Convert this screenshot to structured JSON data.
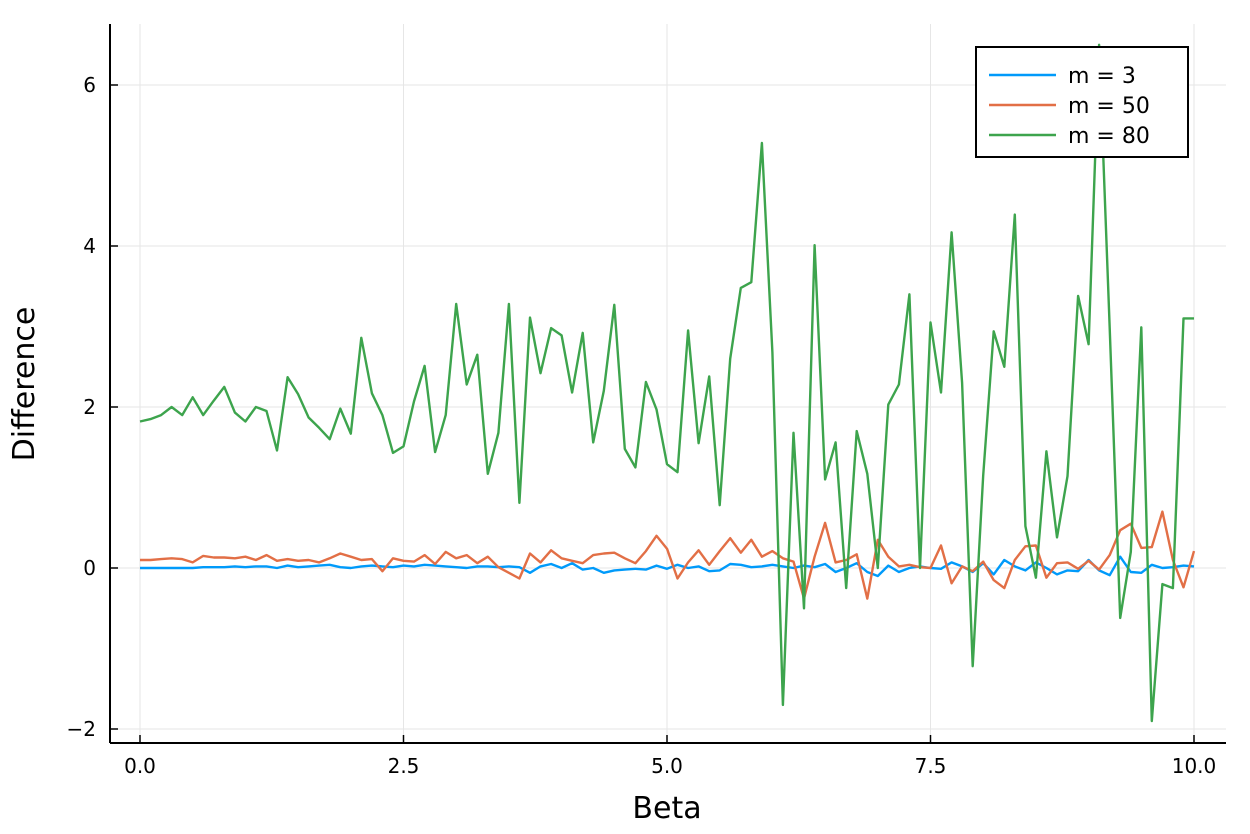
{
  "chart_data": {
    "type": "line",
    "xlabel": "Beta",
    "ylabel": "Difference",
    "xlim": [
      0,
      10
    ],
    "ylim": [
      -2.1,
      6.7
    ],
    "xticks": [
      0.0,
      2.5,
      5.0,
      7.5,
      10.0
    ],
    "xtick_labels": [
      "0.0",
      "2.5",
      "5.0",
      "7.5",
      "10.0"
    ],
    "yticks": [
      -2,
      0,
      2,
      4,
      6
    ],
    "ytick_labels": [
      "−2",
      "0",
      "2",
      "4",
      "6"
    ],
    "grid": true,
    "legend_position": "top-right",
    "series": [
      {
        "name": "m = 3",
        "color": "#009AFA",
        "x": [
          0.0,
          0.1,
          0.2,
          0.3,
          0.4,
          0.5,
          0.6,
          0.7,
          0.8,
          0.9,
          1.0,
          1.1,
          1.2,
          1.3,
          1.4,
          1.5,
          1.6,
          1.7,
          1.8,
          1.9,
          2.0,
          2.1,
          2.2,
          2.3,
          2.4,
          2.5,
          2.6,
          2.7,
          2.8,
          2.9,
          3.0,
          3.1,
          3.2,
          3.3,
          3.4,
          3.5,
          3.6,
          3.7,
          3.8,
          3.9,
          4.0,
          4.1,
          4.2,
          4.3,
          4.4,
          4.5,
          4.6,
          4.7,
          4.8,
          4.9,
          5.0,
          5.1,
          5.2,
          5.3,
          5.4,
          5.5,
          5.6,
          5.7,
          5.8,
          5.9,
          6.0,
          6.1,
          6.2,
          6.3,
          6.4,
          6.5,
          6.6,
          6.7,
          6.8,
          6.9,
          7.0,
          7.1,
          7.2,
          7.3,
          7.4,
          7.5,
          7.6,
          7.7,
          7.8,
          7.9,
          8.0,
          8.1,
          8.2,
          8.3,
          8.4,
          8.5,
          8.6,
          8.7,
          8.8,
          8.9,
          9.0,
          9.1,
          9.2,
          9.3,
          9.4,
          9.5,
          9.6,
          9.7,
          9.8,
          9.9,
          10.0
        ],
        "values": [
          0.0,
          0.0,
          0.0,
          0.0,
          0.0,
          0.0,
          0.01,
          0.01,
          0.01,
          0.02,
          0.01,
          0.02,
          0.02,
          0.0,
          0.03,
          0.01,
          0.02,
          0.03,
          0.04,
          0.01,
          0.0,
          0.02,
          0.03,
          0.02,
          0.01,
          0.03,
          0.02,
          0.04,
          0.03,
          0.02,
          0.01,
          0.0,
          0.02,
          0.02,
          0.01,
          0.02,
          0.01,
          -0.06,
          0.02,
          0.05,
          0.0,
          0.06,
          -0.02,
          0.0,
          -0.06,
          -0.03,
          -0.02,
          -0.01,
          -0.02,
          0.03,
          -0.01,
          0.04,
          0.0,
          0.02,
          -0.04,
          -0.03,
          0.05,
          0.04,
          0.01,
          0.02,
          0.04,
          0.02,
          0.0,
          0.03,
          0.01,
          0.05,
          -0.05,
          0.0,
          0.06,
          -0.05,
          -0.1,
          0.03,
          -0.05,
          0.0,
          0.02,
          0.0,
          -0.01,
          0.07,
          0.02,
          -0.05,
          0.06,
          -0.08,
          0.1,
          0.02,
          -0.03,
          0.07,
          0.0,
          -0.08,
          -0.03,
          -0.04,
          0.1,
          -0.03,
          -0.09,
          0.14,
          -0.05,
          -0.06,
          0.04,
          0.0,
          0.01,
          0.03,
          0.02
        ]
      },
      {
        "name": "m = 50",
        "color": "#E26F46",
        "x": [
          0.0,
          0.1,
          0.2,
          0.3,
          0.4,
          0.5,
          0.6,
          0.7,
          0.8,
          0.9,
          1.0,
          1.1,
          1.2,
          1.3,
          1.4,
          1.5,
          1.6,
          1.7,
          1.8,
          1.9,
          2.0,
          2.1,
          2.2,
          2.3,
          2.4,
          2.5,
          2.6,
          2.7,
          2.8,
          2.9,
          3.0,
          3.1,
          3.2,
          3.3,
          3.4,
          3.5,
          3.6,
          3.7,
          3.8,
          3.9,
          4.0,
          4.1,
          4.2,
          4.3,
          4.4,
          4.5,
          4.6,
          4.7,
          4.8,
          4.9,
          5.0,
          5.1,
          5.2,
          5.3,
          5.4,
          5.5,
          5.6,
          5.7,
          5.8,
          5.9,
          6.0,
          6.1,
          6.2,
          6.3,
          6.4,
          6.5,
          6.6,
          6.7,
          6.8,
          6.9,
          7.0,
          7.1,
          7.2,
          7.3,
          7.4,
          7.5,
          7.6,
          7.7,
          7.8,
          7.9,
          8.0,
          8.1,
          8.2,
          8.3,
          8.4,
          8.5,
          8.6,
          8.7,
          8.8,
          8.9,
          9.0,
          9.1,
          9.2,
          9.3,
          9.4,
          9.5,
          9.6,
          9.7,
          9.8,
          9.9,
          10.0
        ],
        "values": [
          0.1,
          0.1,
          0.11,
          0.12,
          0.11,
          0.07,
          0.15,
          0.13,
          0.13,
          0.12,
          0.14,
          0.1,
          0.16,
          0.09,
          0.11,
          0.09,
          0.1,
          0.07,
          0.12,
          0.18,
          0.14,
          0.1,
          0.11,
          -0.04,
          0.12,
          0.09,
          0.08,
          0.16,
          0.05,
          0.2,
          0.12,
          0.16,
          0.06,
          0.14,
          0.01,
          -0.06,
          -0.13,
          0.18,
          0.07,
          0.22,
          0.12,
          0.09,
          0.06,
          0.16,
          0.18,
          0.19,
          0.12,
          0.06,
          0.21,
          0.4,
          0.24,
          -0.13,
          0.07,
          0.22,
          0.04,
          0.21,
          0.37,
          0.19,
          0.35,
          0.14,
          0.21,
          0.12,
          0.08,
          -0.38,
          0.14,
          0.56,
          0.07,
          0.1,
          0.17,
          -0.38,
          0.35,
          0.14,
          0.02,
          0.04,
          0.01,
          0.0,
          0.28,
          -0.19,
          0.02,
          -0.04,
          0.08,
          -0.15,
          -0.25,
          0.1,
          0.27,
          0.28,
          -0.12,
          0.06,
          0.07,
          -0.01,
          0.09,
          -0.02,
          0.16,
          0.47,
          0.55,
          0.25,
          0.26,
          0.7,
          0.1,
          -0.24,
          0.21
        ]
      },
      {
        "name": "m = 80",
        "color": "#3DA44D",
        "x": [
          0.0,
          0.1,
          0.2,
          0.3,
          0.4,
          0.5,
          0.6,
          0.7,
          0.8,
          0.9,
          1.0,
          1.1,
          1.2,
          1.3,
          1.4,
          1.5,
          1.6,
          1.7,
          1.8,
          1.9,
          2.0,
          2.1,
          2.2,
          2.3,
          2.4,
          2.5,
          2.6,
          2.7,
          2.8,
          2.9,
          3.0,
          3.1,
          3.2,
          3.3,
          3.4,
          3.5,
          3.6,
          3.7,
          3.8,
          3.9,
          4.0,
          4.1,
          4.2,
          4.3,
          4.4,
          4.5,
          4.6,
          4.7,
          4.8,
          4.9,
          5.0,
          5.1,
          5.2,
          5.3,
          5.4,
          5.5,
          5.6,
          5.7,
          5.8,
          5.9,
          6.0,
          6.1,
          6.2,
          6.3,
          6.4,
          6.5,
          6.6,
          6.7,
          6.8,
          6.9,
          7.0,
          7.1,
          7.2,
          7.3,
          7.4,
          7.5,
          7.6,
          7.7,
          7.8,
          7.9,
          8.0,
          8.1,
          8.2,
          8.3,
          8.4,
          8.5,
          8.6,
          8.7,
          8.8,
          8.9,
          9.0,
          9.1,
          9.2,
          9.3,
          9.4,
          9.5,
          9.6,
          9.7,
          9.8,
          9.9,
          10.0
        ],
        "values": [
          1.82,
          1.85,
          1.9,
          2.0,
          1.9,
          2.12,
          1.9,
          2.08,
          2.25,
          1.93,
          1.82,
          2.0,
          1.95,
          1.46,
          2.37,
          2.16,
          1.87,
          1.74,
          1.6,
          1.98,
          1.67,
          2.86,
          2.17,
          1.9,
          1.43,
          1.51,
          2.07,
          2.51,
          1.44,
          1.9,
          3.28,
          2.28,
          2.65,
          1.17,
          1.68,
          3.28,
          0.81,
          3.11,
          2.42,
          2.98,
          2.89,
          2.18,
          2.92,
          1.56,
          2.2,
          3.27,
          1.48,
          1.25,
          2.31,
          1.97,
          1.29,
          1.19,
          2.95,
          1.55,
          2.38,
          0.78,
          2.6,
          3.48,
          3.55,
          5.28,
          2.68,
          -1.7,
          1.68,
          -0.5,
          4.01,
          1.1,
          1.56,
          -0.25,
          1.7,
          1.17,
          0.0,
          2.03,
          2.28,
          3.4,
          0.0,
          3.05,
          2.18,
          4.17,
          2.3,
          -1.22,
          1.15,
          2.94,
          2.5,
          4.39,
          0.52,
          -0.12,
          1.45,
          0.38,
          1.14,
          3.38,
          2.78,
          6.5,
          2.98,
          -0.62,
          0.2,
          2.99,
          -1.9,
          -0.2,
          -0.25,
          3.1,
          3.1
        ]
      }
    ]
  }
}
